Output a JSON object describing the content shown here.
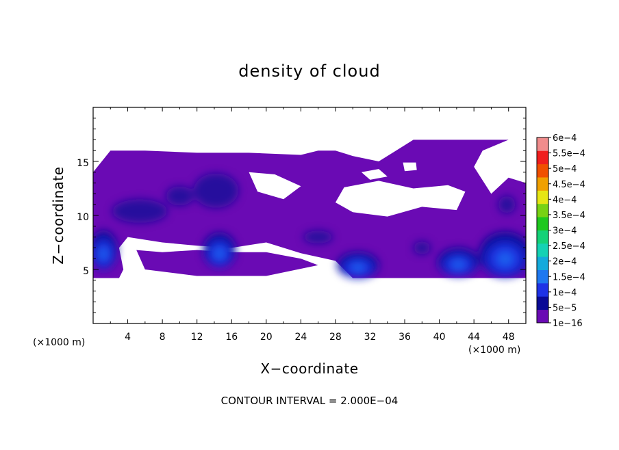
{
  "chart_data": {
    "type": "heatmap",
    "title": "density of cloud",
    "xlabel": "X−coordinate",
    "ylabel": "Z−coordinate",
    "x_unit": "(×1000 m)",
    "z_unit": "(×1000 m)",
    "xlim": [
      0,
      50
    ],
    "ylim": [
      0,
      20
    ],
    "x_ticks": [
      4,
      8,
      12,
      16,
      20,
      24,
      28,
      32,
      36,
      40,
      44,
      48
    ],
    "y_ticks": [
      5,
      10,
      15
    ],
    "x_tick_labels": [
      "4",
      "8",
      "12",
      "16",
      "20",
      "24",
      "28",
      "32",
      "36",
      "40",
      "44",
      "48"
    ],
    "y_tick_labels": [
      "5",
      "10",
      "15"
    ],
    "colorbar": {
      "labels": [
        "1e−16",
        "5e−5",
        "1e−4",
        "1.5e−4",
        "2e−4",
        "2.5e−4",
        "3e−4",
        "3.5e−4",
        "4e−4",
        "4.5e−4",
        "5e−4",
        "5.5e−4",
        "6e−4"
      ],
      "values": [
        1e-16,
        5e-05,
        0.0001,
        0.00015,
        0.0002,
        0.00025,
        0.0003,
        0.00035,
        0.0004,
        0.00045,
        0.0005,
        0.00055,
        0.0006
      ],
      "colors": [
        "#6a0ab4",
        "#0a0a96",
        "#1e32e6",
        "#1e78f0",
        "#14aadc",
        "#14d2b4",
        "#14d278",
        "#1ec81e",
        "#78d214",
        "#e6e614",
        "#f0a000",
        "#f05000",
        "#f01e1e",
        "#f08c8c"
      ]
    },
    "footer": "CONTOUR INTERVAL = 2.000E−04",
    "cloud_field": {
      "base_region": [
        [
          0,
          4.2
        ],
        [
          3,
          4.2
        ],
        [
          3.5,
          5
        ],
        [
          3,
          7
        ],
        [
          4,
          8
        ],
        [
          8,
          7.5
        ],
        [
          12,
          7.2
        ],
        [
          16,
          7
        ],
        [
          20,
          7.5
        ],
        [
          24,
          6.5
        ],
        [
          28,
          5.8
        ],
        [
          30,
          4.2
        ],
        [
          50,
          4.2
        ],
        [
          50,
          13
        ],
        [
          48,
          13.5
        ],
        [
          46,
          12
        ],
        [
          44,
          14.5
        ],
        [
          45,
          16
        ],
        [
          48,
          17
        ],
        [
          37,
          17
        ],
        [
          35,
          16
        ],
        [
          33,
          15
        ],
        [
          30,
          15.5
        ],
        [
          28,
          16
        ],
        [
          26,
          16
        ],
        [
          24,
          15.6
        ],
        [
          18,
          15.8
        ],
        [
          12,
          15.8
        ],
        [
          6,
          16
        ],
        [
          2,
          16
        ],
        [
          0,
          14
        ]
      ],
      "holes": [
        [
          [
            29,
            12.6
          ],
          [
            33,
            13.2
          ],
          [
            37,
            12.5
          ],
          [
            41,
            12.8
          ],
          [
            43,
            12.2
          ],
          [
            42,
            10.5
          ],
          [
            38,
            10.8
          ],
          [
            34,
            9.9
          ],
          [
            30,
            10.3
          ],
          [
            28,
            11.2
          ]
        ],
        [
          [
            18,
            14
          ],
          [
            21,
            13.8
          ],
          [
            24,
            12.7
          ],
          [
            22,
            11.5
          ],
          [
            19,
            12.2
          ]
        ],
        [
          [
            31,
            14
          ],
          [
            33,
            14.3
          ],
          [
            34,
            13.6
          ],
          [
            32,
            13.3
          ]
        ],
        [
          [
            35.8,
            14.9
          ],
          [
            37.3,
            14.9
          ],
          [
            37.4,
            14.2
          ],
          [
            36,
            14.1
          ]
        ],
        [
          [
            6,
            5
          ],
          [
            12,
            4.4
          ],
          [
            16,
            4.4
          ],
          [
            20,
            4.4
          ],
          [
            26,
            5.4
          ],
          [
            24,
            6
          ],
          [
            20,
            6.6
          ],
          [
            16,
            6.6
          ],
          [
            12,
            6.8
          ],
          [
            8,
            6.6
          ],
          [
            5,
            6.8
          ]
        ]
      ],
      "dark_patches": [
        {
          "x": 1.2,
          "z": 6.8,
          "rx": 1.6,
          "rz": 1.8,
          "value": 0.00012
        },
        {
          "x": 14.6,
          "z": 6.8,
          "rx": 1.9,
          "rz": 1.6,
          "value": 0.0001
        },
        {
          "x": 30.6,
          "z": 5.4,
          "rx": 2.4,
          "rz": 1.2,
          "value": 0.00011
        },
        {
          "x": 42.2,
          "z": 5.7,
          "rx": 2.4,
          "rz": 1.3,
          "value": 0.00011
        },
        {
          "x": 47.6,
          "z": 6.4,
          "rx": 3.0,
          "rz": 2.1,
          "value": 0.00013
        },
        {
          "x": 26.0,
          "z": 8.0,
          "rx": 1.7,
          "rz": 0.6,
          "value": 5e-05
        },
        {
          "x": 38.0,
          "z": 7.0,
          "rx": 1.0,
          "rz": 0.6,
          "value": 5e-05
        },
        {
          "x": 14.2,
          "z": 12.3,
          "rx": 2.6,
          "rz": 1.6,
          "value": 5e-05
        },
        {
          "x": 5.4,
          "z": 10.4,
          "rx": 3.2,
          "rz": 1.1,
          "value": 5e-05
        },
        {
          "x": 10.0,
          "z": 11.8,
          "rx": 1.6,
          "rz": 0.9,
          "value": 5e-05
        },
        {
          "x": 47.8,
          "z": 11.0,
          "rx": 1.0,
          "rz": 0.8,
          "value": 5e-05
        }
      ]
    }
  }
}
